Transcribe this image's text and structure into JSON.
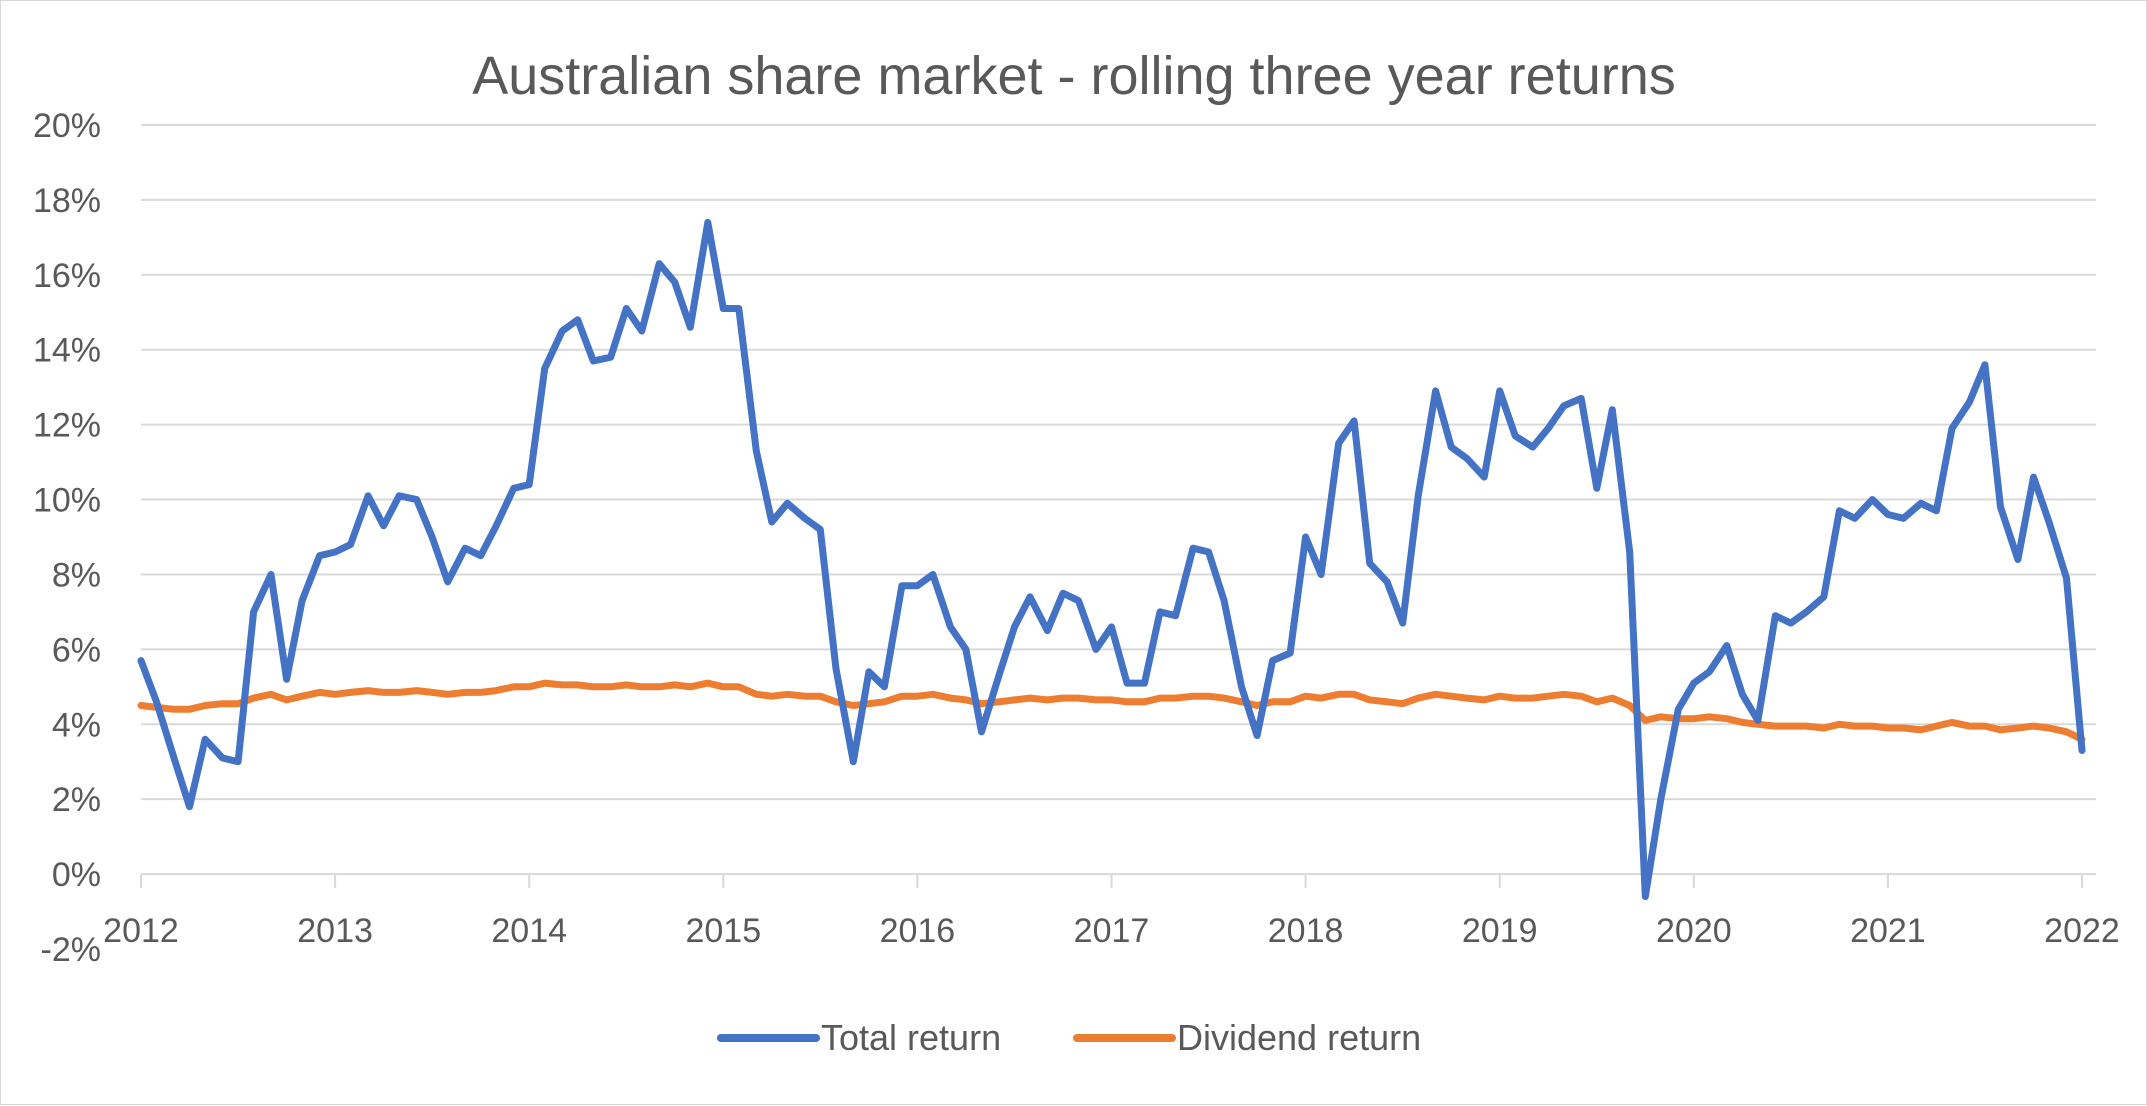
{
  "chart_data": {
    "type": "line",
    "title": "Australian share market - rolling three year returns",
    "xlabel": "",
    "ylabel": "",
    "ylim": [
      -2,
      20
    ],
    "y_ticks": [
      -2,
      0,
      2,
      4,
      6,
      8,
      10,
      12,
      14,
      16,
      18,
      20
    ],
    "y_tick_labels": [
      "-2%",
      "0%",
      "2%",
      "4%",
      "6%",
      "8%",
      "10%",
      "12%",
      "14%",
      "16%",
      "18%",
      "20%"
    ],
    "x_ticks": [
      2012,
      2013,
      2014,
      2015,
      2016,
      2017,
      2018,
      2019,
      2020,
      2021,
      2022
    ],
    "x_tick_labels": [
      "2012",
      "2013",
      "2014",
      "2015",
      "2016",
      "2017",
      "2018",
      "2019",
      "2020",
      "2021",
      "2022"
    ],
    "grid": true,
    "legend": "bottom",
    "series": [
      {
        "name": "Total return",
        "color": "#4472c4",
        "points": [
          [
            2012.0,
            5.7
          ],
          [
            2012.08,
            4.6
          ],
          [
            2012.17,
            3.1
          ],
          [
            2012.25,
            1.8
          ],
          [
            2012.33,
            3.6
          ],
          [
            2012.42,
            3.1
          ],
          [
            2012.5,
            3.0
          ],
          [
            2012.58,
            7.0
          ],
          [
            2012.67,
            8.0
          ],
          [
            2012.75,
            5.2
          ],
          [
            2012.83,
            7.3
          ],
          [
            2012.92,
            8.5
          ],
          [
            2013.0,
            8.6
          ],
          [
            2013.08,
            8.8
          ],
          [
            2013.17,
            10.1
          ],
          [
            2013.25,
            9.3
          ],
          [
            2013.33,
            10.1
          ],
          [
            2013.42,
            10.0
          ],
          [
            2013.5,
            9.0
          ],
          [
            2013.58,
            7.8
          ],
          [
            2013.67,
            8.7
          ],
          [
            2013.75,
            8.5
          ],
          [
            2013.83,
            9.3
          ],
          [
            2013.92,
            10.3
          ],
          [
            2014.0,
            10.4
          ],
          [
            2014.08,
            13.5
          ],
          [
            2014.17,
            14.5
          ],
          [
            2014.25,
            14.8
          ],
          [
            2014.33,
            13.7
          ],
          [
            2014.42,
            13.8
          ],
          [
            2014.5,
            15.1
          ],
          [
            2014.58,
            14.5
          ],
          [
            2014.67,
            16.3
          ],
          [
            2014.75,
            15.8
          ],
          [
            2014.83,
            14.6
          ],
          [
            2014.92,
            17.4
          ],
          [
            2015.0,
            15.1
          ],
          [
            2015.08,
            15.1
          ],
          [
            2015.17,
            11.3
          ],
          [
            2015.25,
            9.4
          ],
          [
            2015.33,
            9.9
          ],
          [
            2015.42,
            9.5
          ],
          [
            2015.5,
            9.2
          ],
          [
            2015.58,
            5.5
          ],
          [
            2015.67,
            3.0
          ],
          [
            2015.75,
            5.4
          ],
          [
            2015.83,
            5.0
          ],
          [
            2015.92,
            7.7
          ],
          [
            2016.0,
            7.7
          ],
          [
            2016.08,
            8.0
          ],
          [
            2016.17,
            6.6
          ],
          [
            2016.25,
            6.0
          ],
          [
            2016.33,
            3.8
          ],
          [
            2016.42,
            5.3
          ],
          [
            2016.5,
            6.6
          ],
          [
            2016.58,
            7.4
          ],
          [
            2016.67,
            6.5
          ],
          [
            2016.75,
            7.5
          ],
          [
            2016.83,
            7.3
          ],
          [
            2016.92,
            6.0
          ],
          [
            2017.0,
            6.6
          ],
          [
            2017.08,
            5.1
          ],
          [
            2017.17,
            5.1
          ],
          [
            2017.25,
            7.0
          ],
          [
            2017.33,
            6.9
          ],
          [
            2017.42,
            8.7
          ],
          [
            2017.5,
            8.6
          ],
          [
            2017.58,
            7.3
          ],
          [
            2017.67,
            5.0
          ],
          [
            2017.75,
            3.7
          ],
          [
            2017.83,
            5.7
          ],
          [
            2017.92,
            5.9
          ],
          [
            2018.0,
            9.0
          ],
          [
            2018.08,
            8.0
          ],
          [
            2018.17,
            11.5
          ],
          [
            2018.25,
            12.1
          ],
          [
            2018.33,
            8.3
          ],
          [
            2018.42,
            7.8
          ],
          [
            2018.5,
            6.7
          ],
          [
            2018.58,
            10.1
          ],
          [
            2018.67,
            12.9
          ],
          [
            2018.75,
            11.4
          ],
          [
            2018.83,
            11.1
          ],
          [
            2018.92,
            10.6
          ],
          [
            2019.0,
            12.9
          ],
          [
            2019.08,
            11.7
          ],
          [
            2019.17,
            11.4
          ],
          [
            2019.25,
            11.9
          ],
          [
            2019.33,
            12.5
          ],
          [
            2019.42,
            12.7
          ],
          [
            2019.5,
            10.3
          ],
          [
            2019.58,
            12.4
          ],
          [
            2019.67,
            8.6
          ],
          [
            2019.75,
            -0.6
          ],
          [
            2019.83,
            2.0
          ],
          [
            2019.92,
            4.4
          ],
          [
            2020.0,
            5.1
          ],
          [
            2020.08,
            5.4
          ],
          [
            2020.17,
            6.1
          ],
          [
            2020.25,
            4.8
          ],
          [
            2020.33,
            4.1
          ],
          [
            2020.42,
            6.9
          ],
          [
            2020.5,
            6.7
          ],
          [
            2020.58,
            7.0
          ],
          [
            2020.67,
            7.4
          ],
          [
            2020.75,
            9.7
          ],
          [
            2020.83,
            9.5
          ],
          [
            2020.92,
            10.0
          ],
          [
            2021.0,
            9.6
          ],
          [
            2021.08,
            9.5
          ],
          [
            2021.17,
            9.9
          ],
          [
            2021.25,
            9.7
          ],
          [
            2021.33,
            11.9
          ],
          [
            2021.42,
            12.6
          ],
          [
            2021.5,
            13.6
          ],
          [
            2021.58,
            9.8
          ],
          [
            2021.67,
            8.4
          ],
          [
            2021.75,
            10.6
          ],
          [
            2021.83,
            9.4
          ],
          [
            2021.92,
            7.9
          ],
          [
            2022.0,
            3.3
          ]
        ]
      },
      {
        "name": "Dividend return",
        "color": "#ed7d31",
        "points": [
          [
            2012.0,
            4.5
          ],
          [
            2012.08,
            4.45
          ],
          [
            2012.17,
            4.4
          ],
          [
            2012.25,
            4.4
          ],
          [
            2012.33,
            4.5
          ],
          [
            2012.42,
            4.55
          ],
          [
            2012.5,
            4.55
          ],
          [
            2012.58,
            4.7
          ],
          [
            2012.67,
            4.8
          ],
          [
            2012.75,
            4.65
          ],
          [
            2012.83,
            4.75
          ],
          [
            2012.92,
            4.85
          ],
          [
            2013.0,
            4.8
          ],
          [
            2013.08,
            4.85
          ],
          [
            2013.17,
            4.9
          ],
          [
            2013.25,
            4.85
          ],
          [
            2013.33,
            4.85
          ],
          [
            2013.42,
            4.9
          ],
          [
            2013.5,
            4.85
          ],
          [
            2013.58,
            4.8
          ],
          [
            2013.67,
            4.85
          ],
          [
            2013.75,
            4.85
          ],
          [
            2013.83,
            4.9
          ],
          [
            2013.92,
            5.0
          ],
          [
            2014.0,
            5.0
          ],
          [
            2014.08,
            5.1
          ],
          [
            2014.17,
            5.05
          ],
          [
            2014.25,
            5.05
          ],
          [
            2014.33,
            5.0
          ],
          [
            2014.42,
            5.0
          ],
          [
            2014.5,
            5.05
          ],
          [
            2014.58,
            5.0
          ],
          [
            2014.67,
            5.0
          ],
          [
            2014.75,
            5.05
          ],
          [
            2014.83,
            5.0
          ],
          [
            2014.92,
            5.1
          ],
          [
            2015.0,
            5.0
          ],
          [
            2015.08,
            5.0
          ],
          [
            2015.17,
            4.8
          ],
          [
            2015.25,
            4.75
          ],
          [
            2015.33,
            4.8
          ],
          [
            2015.42,
            4.75
          ],
          [
            2015.5,
            4.75
          ],
          [
            2015.58,
            4.6
          ],
          [
            2015.67,
            4.5
          ],
          [
            2015.75,
            4.55
          ],
          [
            2015.83,
            4.6
          ],
          [
            2015.92,
            4.75
          ],
          [
            2016.0,
            4.75
          ],
          [
            2016.08,
            4.8
          ],
          [
            2016.17,
            4.7
          ],
          [
            2016.25,
            4.65
          ],
          [
            2016.33,
            4.55
          ],
          [
            2016.42,
            4.6
          ],
          [
            2016.5,
            4.65
          ],
          [
            2016.58,
            4.7
          ],
          [
            2016.67,
            4.65
          ],
          [
            2016.75,
            4.7
          ],
          [
            2016.83,
            4.7
          ],
          [
            2016.92,
            4.65
          ],
          [
            2017.0,
            4.65
          ],
          [
            2017.08,
            4.6
          ],
          [
            2017.17,
            4.6
          ],
          [
            2017.25,
            4.7
          ],
          [
            2017.33,
            4.7
          ],
          [
            2017.42,
            4.75
          ],
          [
            2017.5,
            4.75
          ],
          [
            2017.58,
            4.7
          ],
          [
            2017.67,
            4.6
          ],
          [
            2017.75,
            4.5
          ],
          [
            2017.83,
            4.6
          ],
          [
            2017.92,
            4.6
          ],
          [
            2018.0,
            4.75
          ],
          [
            2018.08,
            4.7
          ],
          [
            2018.17,
            4.8
          ],
          [
            2018.25,
            4.8
          ],
          [
            2018.33,
            4.65
          ],
          [
            2018.42,
            4.6
          ],
          [
            2018.5,
            4.55
          ],
          [
            2018.58,
            4.7
          ],
          [
            2018.67,
            4.8
          ],
          [
            2018.75,
            4.75
          ],
          [
            2018.83,
            4.7
          ],
          [
            2018.92,
            4.65
          ],
          [
            2019.0,
            4.75
          ],
          [
            2019.08,
            4.7
          ],
          [
            2019.17,
            4.7
          ],
          [
            2019.25,
            4.75
          ],
          [
            2019.33,
            4.8
          ],
          [
            2019.42,
            4.75
          ],
          [
            2019.5,
            4.6
          ],
          [
            2019.58,
            4.7
          ],
          [
            2019.67,
            4.5
          ],
          [
            2019.75,
            4.1
          ],
          [
            2019.83,
            4.2
          ],
          [
            2019.92,
            4.15
          ],
          [
            2020.0,
            4.15
          ],
          [
            2020.08,
            4.2
          ],
          [
            2020.17,
            4.15
          ],
          [
            2020.25,
            4.05
          ],
          [
            2020.33,
            4.0
          ],
          [
            2020.42,
            3.95
          ],
          [
            2020.5,
            3.95
          ],
          [
            2020.58,
            3.95
          ],
          [
            2020.67,
            3.9
          ],
          [
            2020.75,
            4.0
          ],
          [
            2020.83,
            3.95
          ],
          [
            2020.92,
            3.95
          ],
          [
            2021.0,
            3.9
          ],
          [
            2021.08,
            3.9
          ],
          [
            2021.17,
            3.85
          ],
          [
            2021.25,
            3.95
          ],
          [
            2021.33,
            4.05
          ],
          [
            2021.42,
            3.95
          ],
          [
            2021.5,
            3.95
          ],
          [
            2021.58,
            3.85
          ],
          [
            2021.67,
            3.9
          ],
          [
            2021.75,
            3.95
          ],
          [
            2021.83,
            3.9
          ],
          [
            2021.92,
            3.8
          ],
          [
            2022.0,
            3.6
          ]
        ]
      }
    ]
  }
}
